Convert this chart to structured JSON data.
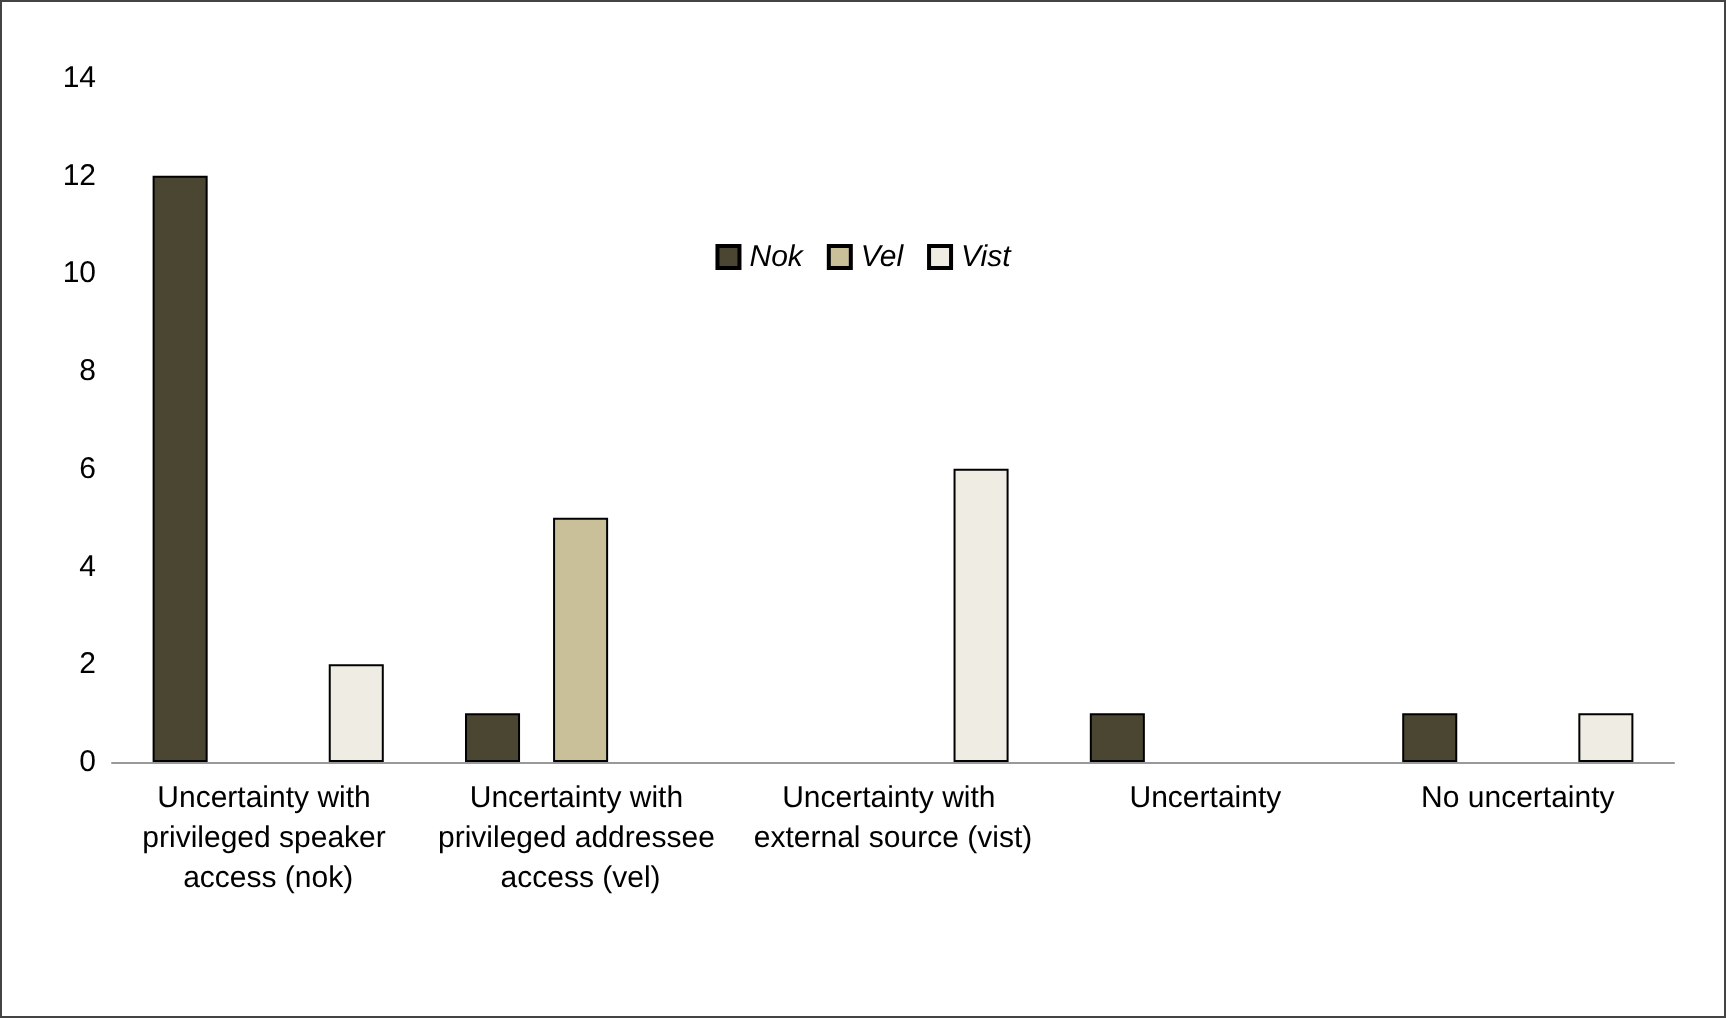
{
  "chart_data": {
    "type": "bar",
    "categories": [
      "Uncertainty with privileged speaker access (nok)",
      "Uncertainty with privileged addressee access (vel)",
      "Uncertainty with external source (vist)",
      "Uncertainty",
      "No uncertainty"
    ],
    "series": [
      {
        "name": "Nok",
        "color": "#4b4631",
        "values": [
          12,
          1,
          null,
          1,
          1
        ]
      },
      {
        "name": "Vel",
        "color": "#c9c09a",
        "values": [
          null,
          5,
          null,
          null,
          null
        ]
      },
      {
        "name": "Vist",
        "color": "#efede3",
        "values": [
          2,
          null,
          6,
          null,
          1
        ]
      }
    ],
    "ylim": [
      0,
      14
    ],
    "yticks": [
      0,
      2,
      4,
      6,
      8,
      10,
      12,
      14
    ],
    "grid": false,
    "legend": "top"
  }
}
